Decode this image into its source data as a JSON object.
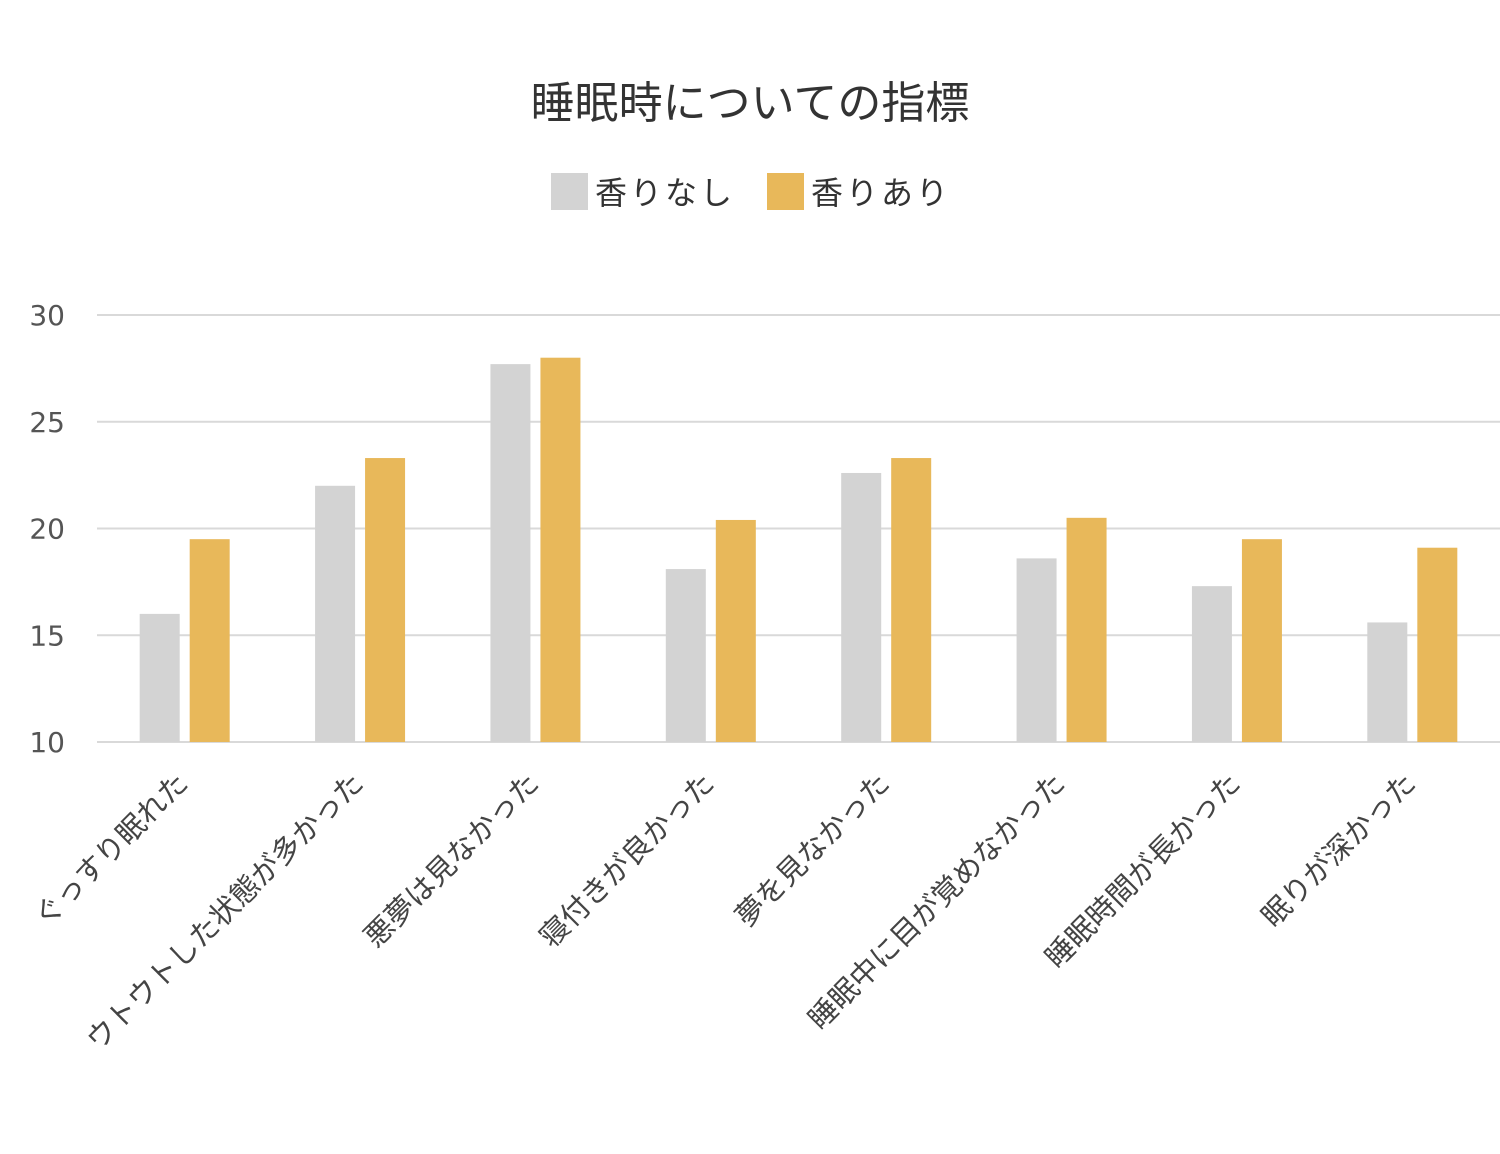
{
  "chart_data": {
    "type": "bar",
    "title": "睡眠時についての指標",
    "categories": [
      "ぐっすり眠れた",
      "ウトウトした状態が多かった",
      "悪夢は見なかった",
      "寝付きが良かった",
      "夢を見なかった",
      "睡眠中に目が覚めなかった",
      "睡眠時間が長かった",
      "眠りが深かった"
    ],
    "series": [
      {
        "name": "香りなし",
        "color": "#d3d3d3",
        "values": [
          16.0,
          22.0,
          27.7,
          18.1,
          22.6,
          18.6,
          17.3,
          15.6
        ]
      },
      {
        "name": "香りあり",
        "color": "#e8b85a",
        "values": [
          19.5,
          23.3,
          28.0,
          20.4,
          23.3,
          20.5,
          19.5,
          19.1
        ]
      }
    ],
    "xlabel": "",
    "ylabel": "",
    "ylim": [
      10,
      30
    ],
    "yticks": [
      10,
      15,
      20,
      25,
      30
    ],
    "grid": true,
    "legend": "top-center"
  }
}
